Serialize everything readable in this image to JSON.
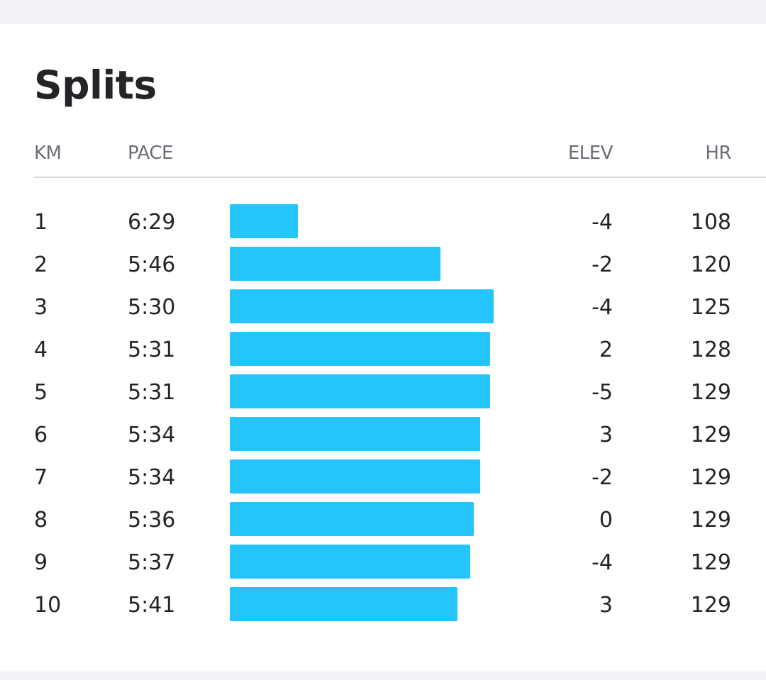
{
  "splits": {
    "title": "Splits",
    "headers": {
      "km": "KM",
      "pace": "PACE",
      "elev": "ELEV",
      "hr": "HR"
    },
    "bar_color": "#24c4fc",
    "rows": [
      {
        "km": "1",
        "pace": "6:29",
        "elev": "-4",
        "hr": "108"
      },
      {
        "km": "2",
        "pace": "5:46",
        "elev": "-2",
        "hr": "120"
      },
      {
        "km": "3",
        "pace": "5:30",
        "elev": "-4",
        "hr": "125"
      },
      {
        "km": "4",
        "pace": "5:31",
        "elev": "2",
        "hr": "128"
      },
      {
        "km": "5",
        "pace": "5:31",
        "elev": "-5",
        "hr": "129"
      },
      {
        "km": "6",
        "pace": "5:34",
        "elev": "3",
        "hr": "129"
      },
      {
        "km": "7",
        "pace": "5:34",
        "elev": "-2",
        "hr": "129"
      },
      {
        "km": "8",
        "pace": "5:36",
        "elev": "0",
        "hr": "129"
      },
      {
        "km": "9",
        "pace": "5:37",
        "elev": "-4",
        "hr": "129"
      },
      {
        "km": "10",
        "pace": "5:41",
        "elev": "3",
        "hr": "129"
      }
    ]
  }
}
